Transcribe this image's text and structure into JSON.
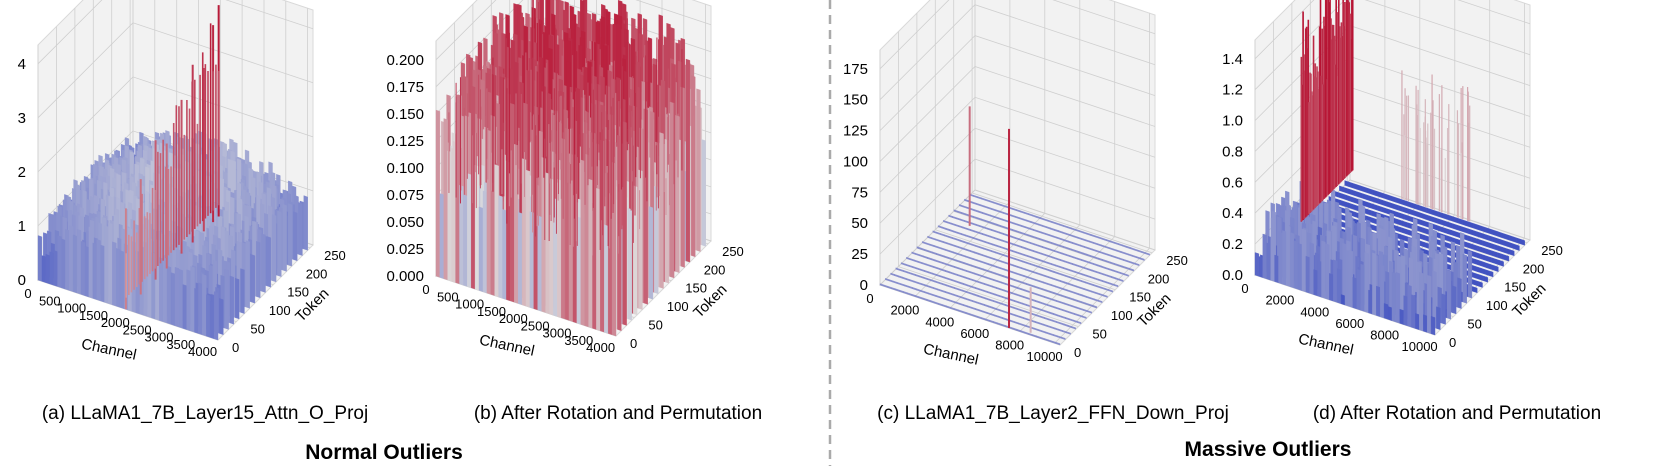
{
  "group_titles": {
    "left": "Normal Outliers",
    "right": "Massive Outliers"
  },
  "colors": {
    "low": "#3b4cc0",
    "mid": "#dddddd",
    "high": "#b40426",
    "divider": "#aaaaaa"
  },
  "chart_data": [
    {
      "type": "surface3d",
      "caption": "(a) LLaMA1_7B_Layer15_Attn_O_Proj",
      "xlabel": "Channel",
      "ylabel": "Token",
      "zlabel": "",
      "xticks": [
        "0",
        "500",
        "1000",
        "1500",
        "2000",
        "2500",
        "3000",
        "3500",
        "4000"
      ],
      "yticks": [
        "0",
        "50",
        "100",
        "150",
        "200",
        "250"
      ],
      "zticks": [
        "0",
        "1",
        "2",
        "3",
        "4"
      ],
      "xlim": [
        0,
        4096
      ],
      "ylim": [
        0,
        256
      ],
      "zlim": [
        0,
        4.5
      ],
      "base_level": 0.45,
      "noise_amplitude": 0.55,
      "spikes": [
        {
          "channel": 2000,
          "token": 0,
          "value": 2.1
        },
        {
          "channel": 2000,
          "token": 40,
          "value": 2.4
        },
        {
          "channel": 2000,
          "token": 80,
          "value": 2.9
        },
        {
          "channel": 2000,
          "token": 110,
          "value": 2.6
        },
        {
          "channel": 2000,
          "token": 150,
          "value": 3.2
        },
        {
          "channel": 2000,
          "token": 180,
          "value": 3.7
        },
        {
          "channel": 2000,
          "token": 210,
          "value": 3.4
        },
        {
          "channel": 2000,
          "token": 235,
          "value": 4.1
        },
        {
          "channel": 2000,
          "token": 250,
          "value": 4.4
        }
      ]
    },
    {
      "type": "surface3d",
      "caption": "(b) After Rotation and Permutation",
      "xlabel": "Channel",
      "ylabel": "Token",
      "zlabel": "",
      "xticks": [
        "0",
        "500",
        "1000",
        "1500",
        "2000",
        "2500",
        "3000",
        "3500",
        "4000"
      ],
      "yticks": [
        "0",
        "50",
        "100",
        "150",
        "200",
        "250"
      ],
      "zticks": [
        "0.000",
        "0.025",
        "0.050",
        "0.075",
        "0.100",
        "0.125",
        "0.150",
        "0.175",
        "0.200"
      ],
      "xlim": [
        0,
        4096
      ],
      "ylim": [
        0,
        256
      ],
      "zlim": [
        0,
        0.22
      ],
      "base_level": 0.06,
      "noise_amplitude": 0.12,
      "spikes": []
    },
    {
      "type": "surface3d",
      "caption": "(c) LLaMA1_7B_Layer2_FFN_Down_Proj",
      "xlabel": "Channel",
      "ylabel": "Token",
      "zlabel": "",
      "xticks": [
        "0",
        "2000",
        "4000",
        "6000",
        "8000",
        "10000"
      ],
      "yticks": [
        "0",
        "50",
        "100",
        "150",
        "200",
        "250"
      ],
      "zticks": [
        "0",
        "25",
        "50",
        "75",
        "100",
        "125",
        "150",
        "175"
      ],
      "xlim": [
        0,
        11008
      ],
      "ylim": [
        0,
        256
      ],
      "zlim": [
        0,
        190
      ],
      "base_level": 0.5,
      "noise_amplitude": 0.3,
      "spikes": [
        {
          "channel": 7890,
          "token": 0,
          "value": 175
        },
        {
          "channel": 1400,
          "token": 180,
          "value": 105
        },
        {
          "channel": 9100,
          "token": 5,
          "value": 40
        }
      ]
    },
    {
      "type": "surface3d",
      "caption": "(d) After Rotation and Permutation",
      "xlabel": "Channel",
      "ylabel": "Token",
      "zlabel": "",
      "xticks": [
        "0",
        "2000",
        "4000",
        "6000",
        "8000",
        "10000"
      ],
      "yticks": [
        "0",
        "50",
        "100",
        "150",
        "200",
        "250"
      ],
      "zticks": [
        "0.0",
        "0.2",
        "0.4",
        "0.6",
        "0.8",
        "1.0",
        "1.2",
        "1.4"
      ],
      "xlim": [
        0,
        11008
      ],
      "ylim": [
        0,
        256
      ],
      "zlim": [
        0,
        1.5
      ],
      "base_level": 0.02,
      "noise_amplitude": 0.35,
      "spikes": []
    }
  ]
}
